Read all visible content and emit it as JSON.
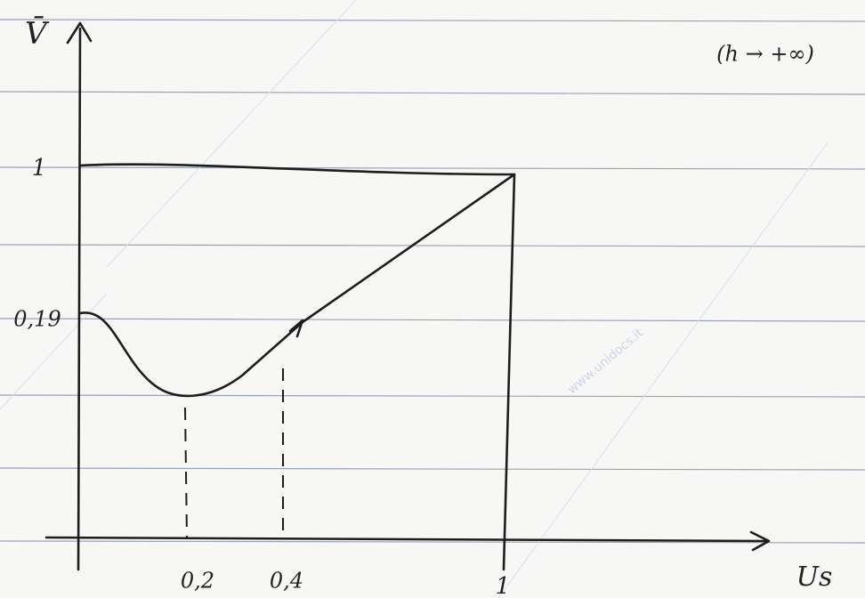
{
  "axes": {
    "y_label": "V̄",
    "x_label": "Us"
  },
  "annotation": "(h → +∞)",
  "y_tick_labels": [
    "1",
    "0,19"
  ],
  "x_tick_labels": [
    "0,2",
    "0,4",
    "1"
  ],
  "watermark": "www.unidocs.it"
}
